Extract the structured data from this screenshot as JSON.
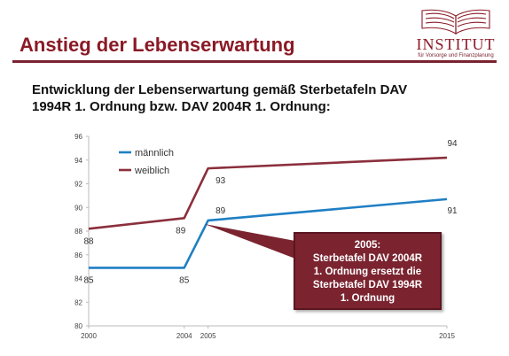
{
  "header": {
    "title": "Anstieg der Lebenserwartung",
    "logo_word": "INSTITUT",
    "logo_sub": "für Vorsorge und Finanzplanung"
  },
  "subtitle_line1": "Entwicklung der Lebenserwartung gemäß Sterbetafeln DAV",
  "subtitle_line2": "1994R 1. Ordnung bzw. DAV 2004R 1. Ordnung:",
  "callout": {
    "lines": [
      "2005:",
      "Sterbetafel DAV 2004R",
      "1. Ordnung ersetzt die",
      "Sterbetafel DAV 1994R",
      "1. Ordnung"
    ]
  },
  "colors": {
    "accent": "#8a1a26",
    "male": "#1f7fc4",
    "female": "#8b2f3c",
    "callout": "#7b2430"
  },
  "chart_data": {
    "type": "line",
    "x_ticks": [
      2000,
      2004,
      2005,
      2015
    ],
    "xlim": [
      2000,
      2015
    ],
    "ylim": [
      80,
      96
    ],
    "y_ticks": [
      80,
      82,
      84,
      86,
      88,
      90,
      92,
      94,
      96
    ],
    "grid": false,
    "legend_position": "top-left",
    "series": [
      {
        "name": "männlich",
        "color": "#1f7fc4",
        "points": [
          [
            2000,
            84.9
          ],
          [
            2004,
            84.9
          ],
          [
            2005,
            88.9
          ],
          [
            2015,
            90.7
          ]
        ],
        "labels": [
          {
            "x": 2000,
            "text": "85"
          },
          {
            "x": 2004,
            "text": "85"
          },
          {
            "x": 2005,
            "text": "89"
          },
          {
            "x": 2015,
            "text": "91"
          }
        ]
      },
      {
        "name": "weiblich",
        "color": "#8b2f3c",
        "points": [
          [
            2000,
            88.2
          ],
          [
            2004,
            89.1
          ],
          [
            2005,
            93.3
          ],
          [
            2015,
            94.2
          ]
        ],
        "labels": [
          {
            "x": 2000,
            "text": "88"
          },
          {
            "x": 2004,
            "text": "89"
          },
          {
            "x": 2005,
            "text": "93"
          },
          {
            "x": 2015,
            "text": "94"
          }
        ]
      }
    ]
  }
}
